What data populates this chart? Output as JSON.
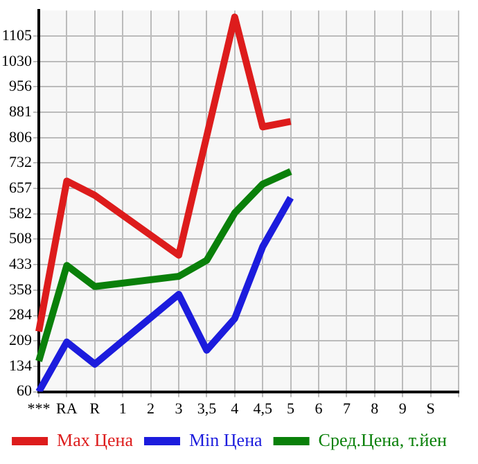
{
  "chart_data": {
    "type": "line",
    "categories": [
      "***",
      "RA",
      "R",
      "1",
      "2",
      "3",
      "3,5",
      "4",
      "4,5",
      "5",
      "6",
      "7",
      "8",
      "9",
      "S",
      null
    ],
    "series": [
      {
        "name": "Max Цена",
        "color": "#dd1c1c",
        "values": [
          237,
          679,
          637,
          null,
          null,
          461,
          null,
          1161,
          838,
          854,
          null,
          null,
          null,
          null,
          null,
          null
        ]
      },
      {
        "name": "Min Цена",
        "color": "#1c1cdd",
        "values": [
          60,
          206,
          141,
          null,
          null,
          346,
          182,
          275,
          486,
          630,
          null,
          null,
          null,
          null,
          null,
          null
        ]
      },
      {
        "name": "Сред.Цена, т.йен",
        "color": "#0a800a",
        "values": [
          150,
          431,
          369,
          null,
          null,
          399,
          446,
          585,
          670,
          707,
          null,
          null,
          null,
          null,
          null,
          null
        ]
      }
    ],
    "ylim": [
      60,
      1180
    ],
    "yticks": [
      60,
      134,
      209,
      284,
      358,
      433,
      508,
      582,
      657,
      732,
      806,
      881,
      956,
      1030,
      1105
    ],
    "grid": true,
    "legend": "bottom",
    "marker": "none",
    "line_style": "solid"
  }
}
